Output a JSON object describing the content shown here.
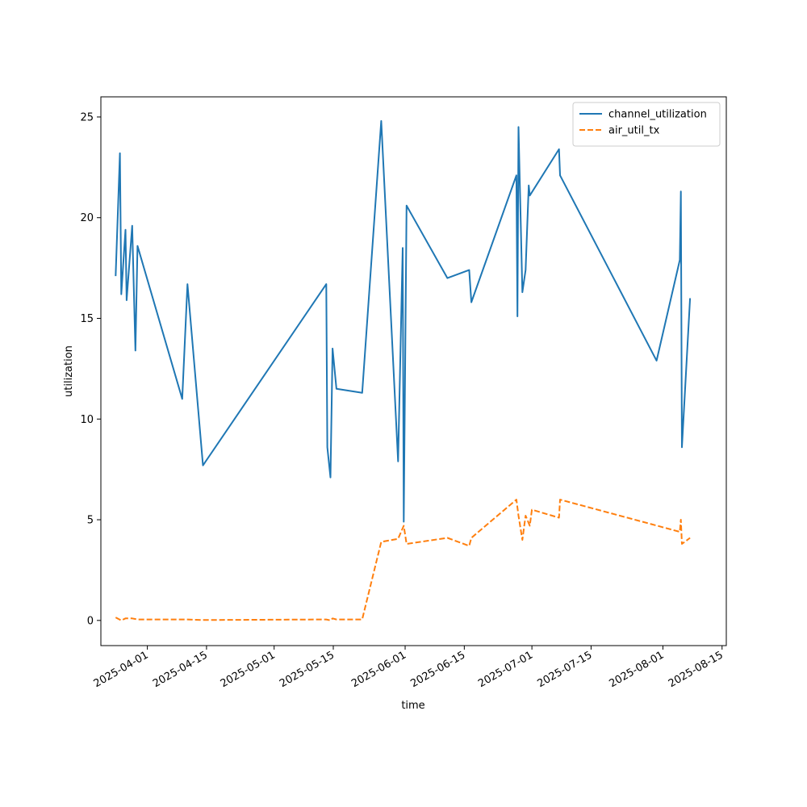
{
  "chart_data": {
    "type": "line",
    "title": "",
    "xlabel": "time",
    "ylabel": "utilization",
    "x_axis_type": "date",
    "xlim": [
      "2025-03-21",
      "2025-08-16"
    ],
    "ylim": [
      -1.25,
      26.0
    ],
    "x_ticks": [
      "2025-04-01",
      "2025-04-15",
      "2025-05-01",
      "2025-05-15",
      "2025-06-01",
      "2025-06-15",
      "2025-07-01",
      "2025-07-15",
      "2025-08-01",
      "2025-08-15"
    ],
    "y_ticks": [
      0,
      5,
      10,
      15,
      20,
      25
    ],
    "grid": false,
    "legend": "top-right",
    "series": [
      {
        "name": "channel_utilization",
        "color": "#1f77b4",
        "style": "solid",
        "points": [
          [
            "2025-03-24T12:00",
            17.1
          ],
          [
            "2025-03-25T12:00",
            23.2
          ],
          [
            "2025-03-25T20:00",
            16.2
          ],
          [
            "2025-03-26T20:00",
            19.4
          ],
          [
            "2025-03-27T02:00",
            15.9
          ],
          [
            "2025-03-28T10:00",
            19.6
          ],
          [
            "2025-03-29T04:00",
            13.4
          ],
          [
            "2025-03-29T16:00",
            18.6
          ],
          [
            "2025-04-09T06:00",
            11.0
          ],
          [
            "2025-04-10T12:00",
            16.7
          ],
          [
            "2025-04-14T04:00",
            7.7
          ],
          [
            "2025-05-13T08:00",
            16.7
          ],
          [
            "2025-05-13T14:00",
            8.6
          ],
          [
            "2025-05-14T08:00",
            7.1
          ],
          [
            "2025-05-14T20:00",
            13.5
          ],
          [
            "2025-05-15T18:00",
            11.5
          ],
          [
            "2025-05-21T20:00",
            11.3
          ],
          [
            "2025-05-26T08:00",
            24.8
          ],
          [
            "2025-05-30T08:00",
            7.9
          ],
          [
            "2025-05-31T10:00",
            18.5
          ],
          [
            "2025-05-31T16:00",
            4.9
          ],
          [
            "2025-06-01T08:00",
            20.6
          ],
          [
            "2025-06-11T00:00",
            17.0
          ],
          [
            "2025-06-16T04:00",
            17.4
          ],
          [
            "2025-06-16T16:00",
            15.8
          ],
          [
            "2025-06-27T08:00",
            22.1
          ],
          [
            "2025-06-27T14:00",
            15.1
          ],
          [
            "2025-06-27T20:00",
            24.5
          ],
          [
            "2025-06-28T18:00",
            16.3
          ],
          [
            "2025-06-29T12:00",
            17.4
          ],
          [
            "2025-06-30T06:00",
            21.6
          ],
          [
            "2025-06-30T12:00",
            21.1
          ],
          [
            "2025-07-07T10:00",
            23.4
          ],
          [
            "2025-07-07T16:00",
            22.1
          ],
          [
            "2025-07-30T12:00",
            12.9
          ],
          [
            "2025-08-05T00:00",
            17.9
          ],
          [
            "2025-08-05T06:00",
            21.3
          ],
          [
            "2025-08-05T12:00",
            8.6
          ],
          [
            "2025-08-07T10:00",
            16.0
          ]
        ]
      },
      {
        "name": "air_util_tx",
        "color": "#ff7f0e",
        "style": "dashed",
        "points": [
          [
            "2025-03-24T12:00",
            0.15
          ],
          [
            "2025-03-25T20:00",
            0.0
          ],
          [
            "2025-03-26T20:00",
            0.1
          ],
          [
            "2025-03-28T10:00",
            0.1
          ],
          [
            "2025-03-29T16:00",
            0.05
          ],
          [
            "2025-04-09T06:00",
            0.05
          ],
          [
            "2025-04-10T12:00",
            0.05
          ],
          [
            "2025-04-14T04:00",
            0.02
          ],
          [
            "2025-05-13T08:00",
            0.05
          ],
          [
            "2025-05-14T08:00",
            0.0
          ],
          [
            "2025-05-14T20:00",
            0.1
          ],
          [
            "2025-05-15T18:00",
            0.05
          ],
          [
            "2025-05-21T20:00",
            0.05
          ],
          [
            "2025-05-26T08:00",
            3.9
          ],
          [
            "2025-05-30T08:00",
            4.05
          ],
          [
            "2025-05-31T16:00",
            4.7
          ],
          [
            "2025-06-01T08:00",
            3.8
          ],
          [
            "2025-06-11T00:00",
            4.1
          ],
          [
            "2025-06-16T04:00",
            3.7
          ],
          [
            "2025-06-16T16:00",
            4.1
          ],
          [
            "2025-06-27T08:00",
            6.0
          ],
          [
            "2025-06-27T20:00",
            5.2
          ],
          [
            "2025-06-28T18:00",
            4.0
          ],
          [
            "2025-06-29T12:00",
            5.2
          ],
          [
            "2025-06-30T12:00",
            4.7
          ],
          [
            "2025-07-01T00:00",
            5.5
          ],
          [
            "2025-07-07T10:00",
            5.1
          ],
          [
            "2025-07-07T16:00",
            6.0
          ],
          [
            "2025-08-05T00:00",
            4.4
          ],
          [
            "2025-08-05T06:00",
            5.0
          ],
          [
            "2025-08-05T12:00",
            3.8
          ],
          [
            "2025-08-07T10:00",
            4.1
          ]
        ]
      }
    ]
  }
}
